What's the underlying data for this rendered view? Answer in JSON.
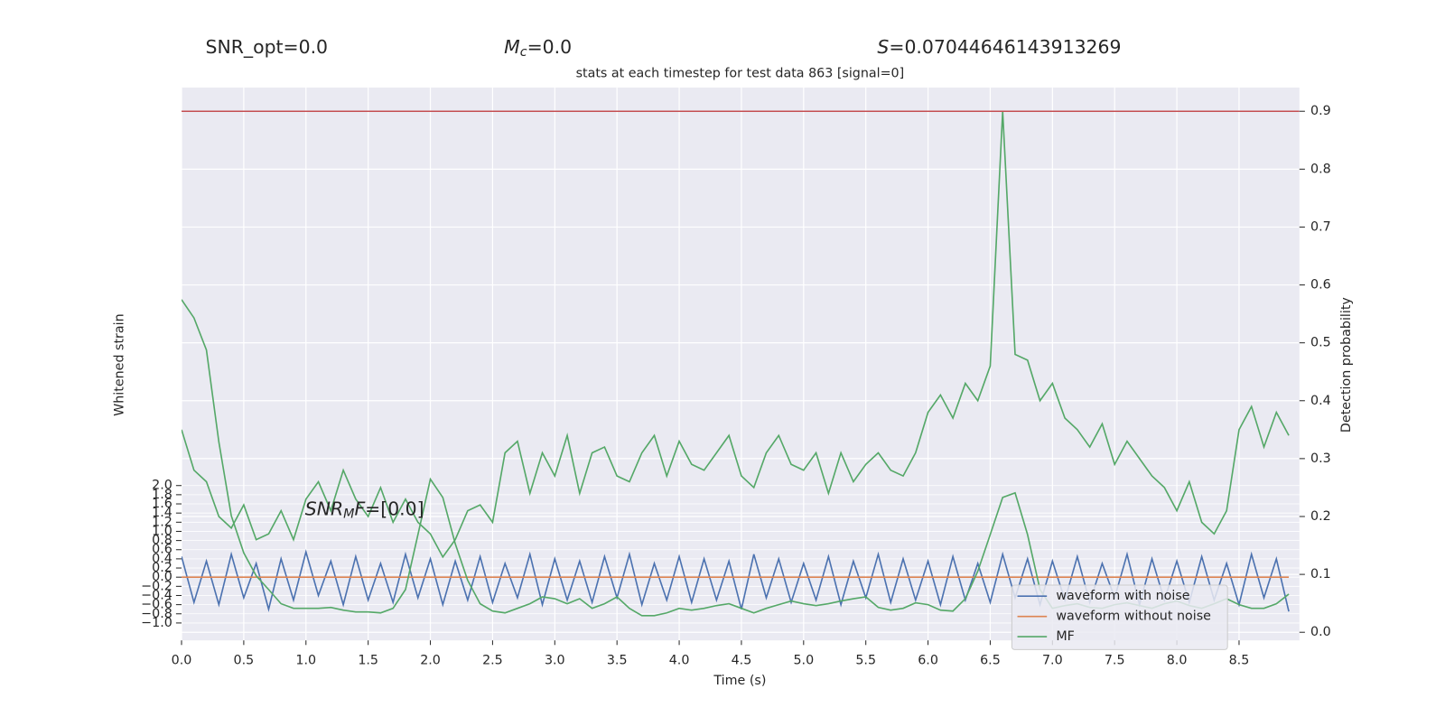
{
  "chart_data": {
    "type": "line",
    "title": "stats at each timestep for test data 863 [signal=0]",
    "annotations": {
      "snr_opt": "SNR_opt=0.0",
      "mc": {
        "symbol": "M",
        "sub": "c",
        "text": "=0.0"
      },
      "s": {
        "symbol": "S",
        "text": "=0.07044646143913269"
      },
      "snr_mf": {
        "symbol": "SNR",
        "sub": "M",
        "tail": "F",
        "text": "=[0.0]"
      }
    },
    "xlabel": "Time (s)",
    "ylabel": "Whitened strain",
    "y2label": "Detection probability",
    "xlim": [
      0,
      8.985
    ],
    "ylim": [
      -1.38,
      10.69
    ],
    "y2lim": [
      -0.014,
      0.941
    ],
    "xticks": [
      {
        "value": 0,
        "label": "0.0"
      },
      0.5,
      {
        "value": 1,
        "label": "1.0"
      },
      1.5,
      {
        "value": 2,
        "label": "2.0"
      },
      2.5,
      {
        "value": 3,
        "label": "3.0"
      },
      3.5,
      {
        "value": 4,
        "label": "4.0"
      },
      4.5,
      {
        "value": 5,
        "label": "5.0"
      },
      5.5,
      {
        "value": 6,
        "label": "6.0"
      },
      6.5,
      {
        "value": 7,
        "label": "7.0"
      },
      7.5,
      {
        "value": 8,
        "label": "8.0"
      },
      8.5
    ],
    "yticks": [
      {
        "value": -1,
        "label": "−1.0"
      },
      {
        "value": -0.8,
        "label": "−0.8"
      },
      {
        "value": -0.6,
        "label": "−0.6"
      },
      {
        "value": -0.4,
        "label": "−0.4"
      },
      {
        "value": -0.2,
        "label": "−0.2"
      },
      {
        "value": 0,
        "label": "0.0"
      },
      0.2,
      0.4,
      0.6,
      0.8,
      {
        "value": 1,
        "label": "1.0"
      },
      1.2,
      1.4,
      1.6,
      1.8,
      {
        "value": 2,
        "label": "2.0"
      }
    ],
    "y2ticks": [
      {
        "value": 0,
        "label": "0.0"
      },
      0.1,
      0.2,
      0.3,
      0.4,
      0.5,
      0.6,
      0.7,
      0.8,
      0.9
    ],
    "grid": true,
    "legend": "lower right",
    "threshold": {
      "value": 0.9,
      "color": "#c44e52",
      "axis": "y2"
    },
    "x": [
      0,
      0.1,
      0.2,
      0.3,
      0.4,
      0.5,
      0.6,
      0.7,
      0.8,
      0.9,
      1,
      1.1,
      1.2,
      1.3,
      1.4,
      1.5,
      1.6,
      1.7,
      1.8,
      1.9,
      2,
      2.1,
      2.2,
      2.3,
      2.4,
      2.5,
      2.6,
      2.7,
      2.8,
      2.9,
      3,
      3.1,
      3.2,
      3.3,
      3.4,
      3.5,
      3.6,
      3.7,
      3.8,
      3.9,
      4,
      4.1,
      4.2,
      4.3,
      4.4,
      4.5,
      4.6,
      4.7,
      4.8,
      4.9,
      5,
      5.1,
      5.2,
      5.3,
      5.4,
      5.5,
      5.6,
      5.7,
      5.8,
      5.9,
      6,
      6.1,
      6.2,
      6.3,
      6.4,
      6.5,
      6.6,
      6.7,
      6.8,
      6.9,
      7,
      7.1,
      7.2,
      7.3,
      7.4,
      7.5,
      7.6,
      7.7,
      7.8,
      7.9,
      8,
      8.1,
      8.2,
      8.3,
      8.4,
      8.5,
      8.6,
      8.7,
      8.8,
      8.9
    ],
    "probability": {
      "color": "#55a868",
      "axis": "y2",
      "values": [
        0.35,
        0.28,
        0.26,
        0.2,
        0.18,
        0.22,
        0.16,
        0.17,
        0.21,
        0.16,
        0.23,
        0.26,
        0.21,
        0.28,
        0.23,
        0.2,
        0.25,
        0.19,
        0.23,
        0.19,
        0.17,
        0.13,
        0.16,
        0.21,
        0.22,
        0.19,
        0.31,
        0.33,
        0.24,
        0.31,
        0.27,
        0.34,
        0.24,
        0.31,
        0.32,
        0.27,
        0.26,
        0.31,
        0.34,
        0.27,
        0.33,
        0.29,
        0.28,
        0.31,
        0.34,
        0.27,
        0.25,
        0.31,
        0.34,
        0.29,
        0.28,
        0.31,
        0.24,
        0.31,
        0.26,
        0.29,
        0.31,
        0.28,
        0.27,
        0.31,
        0.38,
        0.41,
        0.37,
        0.43,
        0.4,
        0.46,
        0.9,
        0.48,
        0.47,
        0.4,
        0.43,
        0.37,
        0.35,
        0.32,
        0.36,
        0.29,
        0.33,
        0.3,
        0.27,
        0.25,
        0.21,
        0.26,
        0.19,
        0.17,
        0.21,
        0.35,
        0.39,
        0.32,
        0.38,
        0.34
      ]
    },
    "series": [
      {
        "name": "waveform with noise",
        "color": "#4c72b0",
        "values": [
          0.45,
          -0.55,
          0.35,
          -0.6,
          0.5,
          -0.45,
          0.3,
          -0.7,
          0.4,
          -0.5,
          0.55,
          -0.4,
          0.35,
          -0.6,
          0.45,
          -0.5,
          0.3,
          -0.55,
          0.5,
          -0.45,
          0.4,
          -0.6,
          0.35,
          -0.5,
          0.45,
          -0.55,
          0.3,
          -0.45,
          0.5,
          -0.6,
          0.4,
          -0.5,
          0.35,
          -0.55,
          0.45,
          -0.45,
          0.5,
          -0.6,
          0.3,
          -0.5,
          0.45,
          -0.55,
          0.4,
          -0.5,
          0.35,
          -0.7,
          0.5,
          -0.45,
          0.4,
          -0.55,
          0.3,
          -0.5,
          0.45,
          -0.6,
          0.35,
          -0.45,
          0.5,
          -0.55,
          0.4,
          -0.5,
          0.35,
          -0.6,
          0.45,
          -0.5,
          0.3,
          -0.55,
          0.5,
          -0.45,
          0.4,
          -0.6,
          0.35,
          -0.5,
          0.45,
          -0.55,
          0.3,
          -0.45,
          0.5,
          -0.6,
          0.4,
          -0.5,
          0.35,
          -0.55,
          0.45,
          -0.5,
          0.3,
          -0.6,
          0.5,
          -0.45,
          0.4,
          -0.75
        ]
      },
      {
        "name": "waveform without noise",
        "color": "#dd8452",
        "values": [
          0,
          0,
          0,
          0,
          0,
          0,
          0,
          0,
          0,
          0,
          0,
          0,
          0,
          0,
          0,
          0,
          0,
          0,
          0,
          0,
          0,
          0,
          0,
          0,
          0,
          0,
          0,
          0,
          0,
          0,
          0,
          0,
          0,
          0,
          0,
          0,
          0,
          0,
          0,
          0,
          0,
          0,
          0,
          0,
          0,
          0,
          0,
          0,
          0,
          0,
          0,
          0,
          0,
          0,
          0,
          0,
          0,
          0,
          0,
          0,
          0,
          0,
          0,
          0,
          0,
          0,
          0,
          0,
          0,
          0,
          0,
          0,
          0,
          0,
          0,
          0,
          0,
          0,
          0,
          0,
          0,
          0,
          0,
          0,
          0,
          0,
          0,
          0,
          0,
          0
        ]
      },
      {
        "name": "MF",
        "color": "#55a868",
        "values": [
          6.06,
          5.66,
          4.96,
          2.95,
          1.34,
          0.53,
          0.03,
          -0.27,
          -0.58,
          -0.68,
          -0.68,
          -0.68,
          -0.66,
          -0.72,
          -0.76,
          -0.76,
          -0.78,
          -0.68,
          -0.27,
          0.93,
          2.14,
          1.74,
          0.73,
          -0.07,
          -0.58,
          -0.74,
          -0.78,
          -0.68,
          -0.58,
          -0.43,
          -0.47,
          -0.58,
          -0.47,
          -0.68,
          -0.58,
          -0.43,
          -0.68,
          -0.84,
          -0.84,
          -0.78,
          -0.68,
          -0.72,
          -0.68,
          -0.62,
          -0.58,
          -0.68,
          -0.78,
          -0.68,
          -0.6,
          -0.52,
          -0.58,
          -0.62,
          -0.58,
          -0.52,
          -0.47,
          -0.43,
          -0.66,
          -0.72,
          -0.68,
          -0.56,
          -0.6,
          -0.72,
          -0.74,
          -0.47,
          0.13,
          0.93,
          1.74,
          1.84,
          0.93,
          -0.27,
          -0.68,
          -0.62,
          -0.58,
          -0.66,
          -0.68,
          -0.6,
          -0.56,
          -0.62,
          -0.68,
          -0.58,
          -0.52,
          -0.62,
          -0.68,
          -0.58,
          -0.47,
          -0.6,
          -0.68,
          -0.68,
          -0.58,
          -0.37
        ]
      }
    ]
  }
}
